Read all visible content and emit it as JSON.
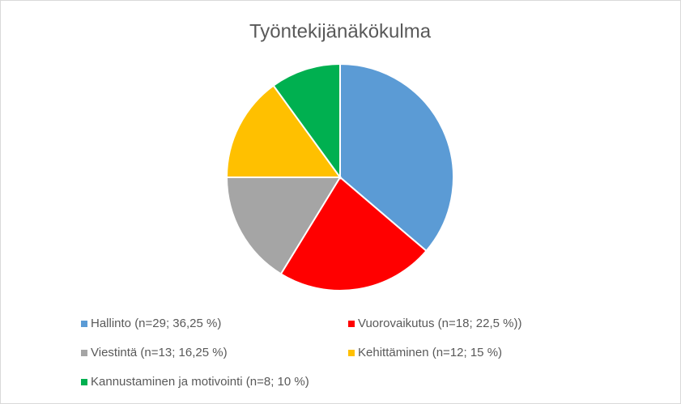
{
  "chart_data": {
    "type": "pie",
    "title": "Työntekijänäkökulma",
    "categories": [
      "Hallinto (n=29; 36,25 %)",
      "Vuorovaikutus (n=18; 22,5 %))",
      "Viestintä (n=13; 16,25 %)",
      "Kehittäminen (n=12; 15 %)",
      "Kannustaminen ja motivointi (n=8; 10 %)"
    ],
    "values": [
      36.25,
      22.5,
      16.25,
      15,
      10
    ],
    "colors": [
      "#5b9bd5",
      "#ff0000",
      "#a5a5a5",
      "#ffc000",
      "#00b050"
    ],
    "legend": "bottom"
  }
}
